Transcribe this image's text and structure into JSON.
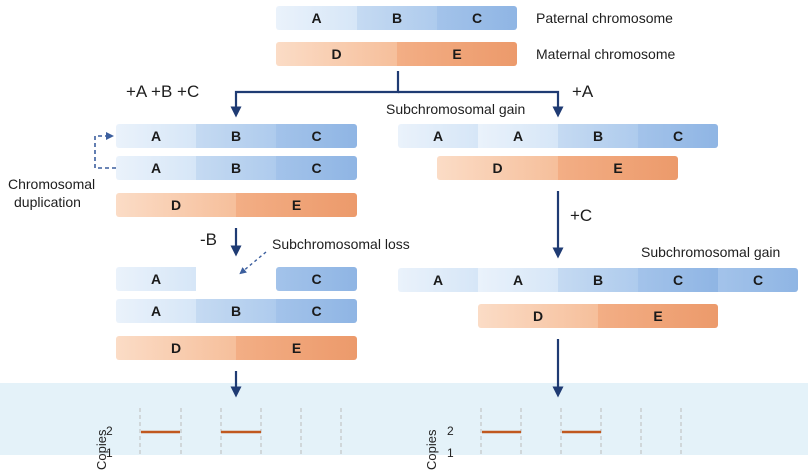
{
  "legend": {
    "paternal": "Paternal chromosome",
    "maternal": "Maternal chromosome"
  },
  "segments": {
    "A": "A",
    "B": "B",
    "C": "C",
    "D": "D",
    "E": "E"
  },
  "left_branch": {
    "gain_label": "+A +B +C",
    "duplication_label_1": "Chromosomal",
    "duplication_label_2": "duplication",
    "loss_op": "-B",
    "loss_label": "Subchromosomal loss"
  },
  "right_branch": {
    "gain_op_1": "+A",
    "gain_label_1": "Subchromosomal gain",
    "gain_op_2": "+C",
    "gain_label_2": "Subchromosomal gain"
  },
  "copy_plot": {
    "ylabel": "Copies",
    "ticks": [
      "2",
      "1"
    ],
    "left_levels": [
      2,
      2
    ],
    "right_levels": [
      2,
      2
    ],
    "line_color": "#c0581f"
  },
  "colors": {
    "arrow": "#1f3b73",
    "dashed_arrow": "#3c5f9e",
    "panel": "#e4f2f9"
  }
}
